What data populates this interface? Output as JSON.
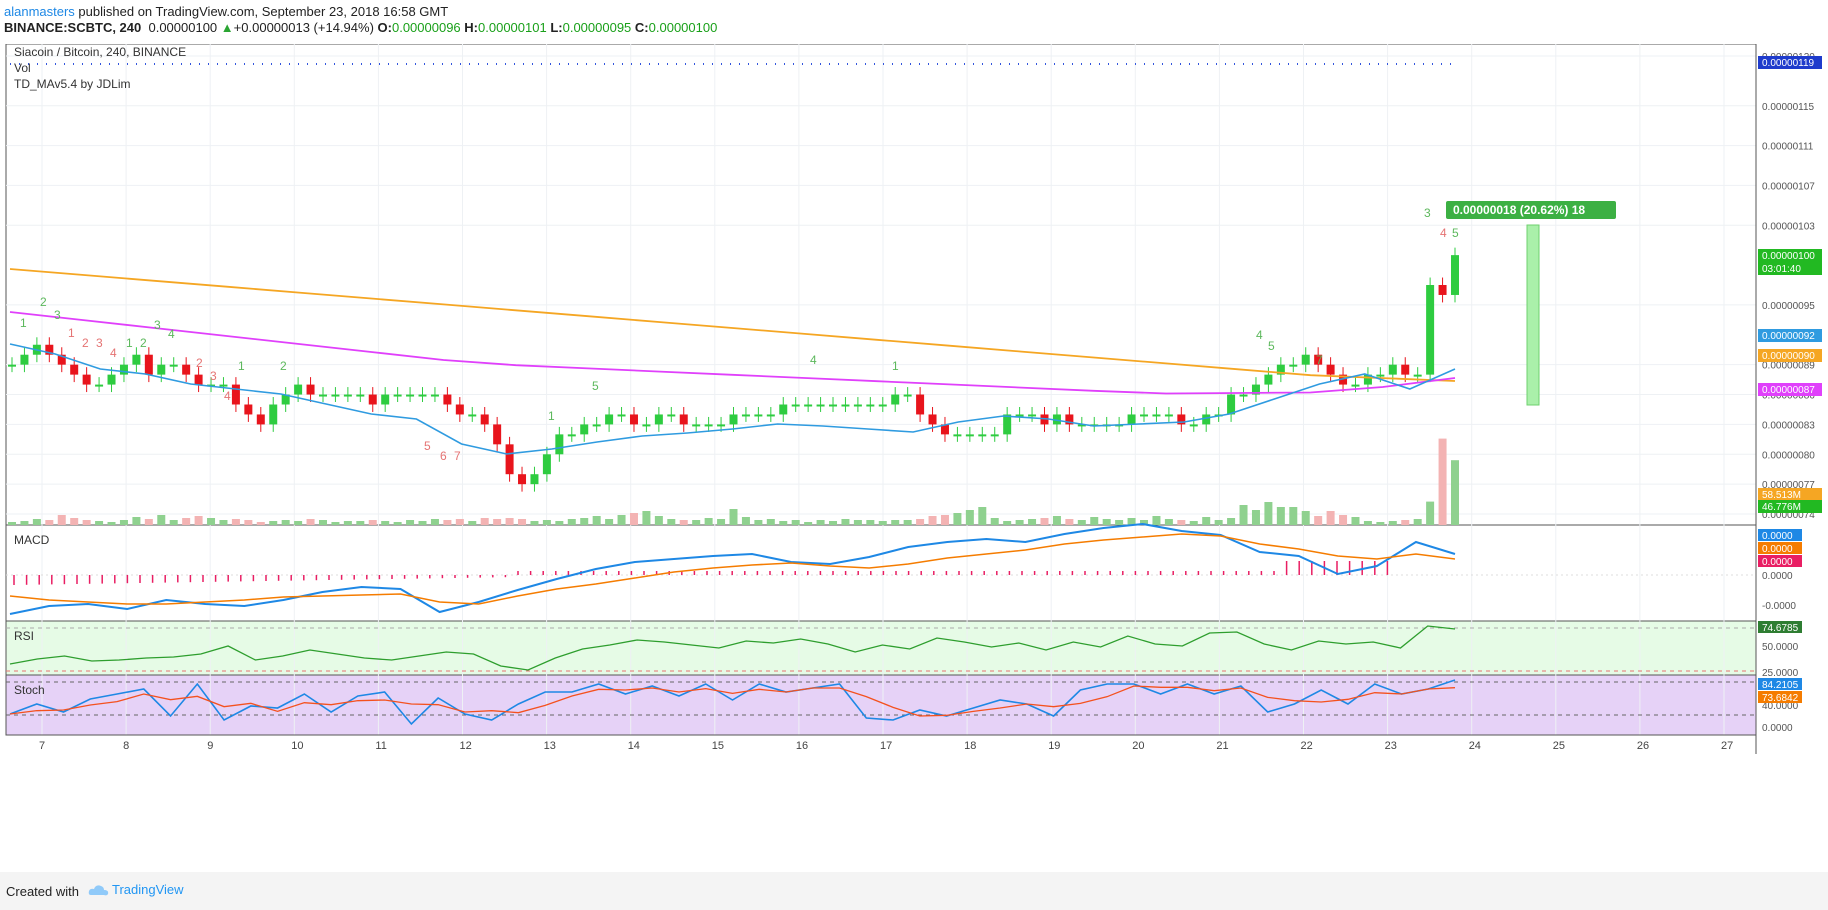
{
  "header": {
    "username": "alanmasters",
    "published_text": " published on TradingView.com, September 23, 2018 16:58 GMT",
    "symbol_line": "BINANCE:SCBTC, 240",
    "last": "0.00000100",
    "change": "+0.00000013 (+14.94%)",
    "o_label": "O:",
    "o": "0.00000096",
    "h_label": "H:",
    "h": "0.00000101",
    "l_label": "L:",
    "l": "0.00000095",
    "c_label": "C:",
    "c": "0.00000100"
  },
  "legend": {
    "title": "Siacoin / Bitcoin, 240, BINANCE",
    "vol": "Vol",
    "indicator": "TD_MAv5.4 by JDLim"
  },
  "measure_label": "0.00000018 (20.62%) 18",
  "price_axis": {
    "ticks": [
      "0.00000120",
      "0.00000115",
      "0.00000111",
      "0.00000107",
      "0.00000103",
      "0.00000095",
      "0.00000089",
      "0.00000086",
      "0.00000083",
      "0.00000080",
      "0.00000077",
      "0.00000074"
    ],
    "tags": [
      {
        "text": "0.00000119",
        "color": "#1e3bcc"
      },
      {
        "text": "0.00000100",
        "color": "#22b922"
      },
      {
        "text": "03:01:40",
        "color": "#22b922"
      },
      {
        "text": "0.00000092",
        "color": "#2f9be0"
      },
      {
        "text": "0.00000090",
        "color": "#f5a623"
      },
      {
        "text": "0.00000087",
        "color": "#e040fb"
      },
      {
        "text": "58.513M",
        "color": "#f5a623"
      },
      {
        "text": "46.776M",
        "color": "#22b922"
      }
    ]
  },
  "macd": {
    "title": "MACD",
    "ticks": [
      "0.0000",
      "-0.0000"
    ],
    "tags": [
      {
        "text": "0.0000",
        "color": "#1e88e5"
      },
      {
        "text": "0.0000",
        "color": "#f57c00"
      },
      {
        "text": "0.0000",
        "color": "#e91e63"
      }
    ]
  },
  "rsi": {
    "title": "RSI",
    "ticks": [
      "50.0000",
      "25.0000"
    ],
    "tag": {
      "text": "74.6785",
      "color": "#2e7d32"
    }
  },
  "stoch": {
    "title": "Stoch",
    "ticks": [
      "40.0000",
      "0.0000"
    ],
    "tags": [
      {
        "text": "84.2105",
        "color": "#1e88e5"
      },
      {
        "text": "73.6842",
        "color": "#f57c00"
      }
    ]
  },
  "x_axis": [
    "7",
    "8",
    "9",
    "10",
    "11",
    "12",
    "13",
    "14",
    "15",
    "16",
    "17",
    "18",
    "19",
    "20",
    "21",
    "22",
    "23",
    "24",
    "25",
    "26",
    "27"
  ],
  "footer": {
    "created": "Created with",
    "brand": "TradingView"
  },
  "colors": {
    "up": "#2ecc40",
    "down": "#e8141c",
    "ma_fast": "#2f9be0",
    "ma_slow": "#f5a623",
    "ma_mid": "#e040fb"
  },
  "chart_data": {
    "type": "candlestick",
    "title": "Siacoin / Bitcoin, 240, BINANCE",
    "ylim": [
      7.3e-07,
      1.21e-06
    ],
    "x_labels": [
      "7",
      "8",
      "9",
      "10",
      "11",
      "12",
      "13",
      "14",
      "15",
      "16",
      "17",
      "18",
      "19",
      "20",
      "21",
      "22",
      "23"
    ],
    "close": [
      8.9e-07,
      9e-07,
      9.1e-07,
      9e-07,
      8.9e-07,
      8.8e-07,
      8.7e-07,
      8.7e-07,
      8.8e-07,
      8.9e-07,
      9e-07,
      8.8e-07,
      8.9e-07,
      8.9e-07,
      8.8e-07,
      8.7e-07,
      8.7e-07,
      8.7e-07,
      8.5e-07,
      8.4e-07,
      8.3e-07,
      8.5e-07,
      8.6e-07,
      8.7e-07,
      8.6e-07,
      8.6e-07,
      8.6e-07,
      8.6e-07,
      8.6e-07,
      8.5e-07,
      8.6e-07,
      8.6e-07,
      8.6e-07,
      8.6e-07,
      8.6e-07,
      8.5e-07,
      8.4e-07,
      8.4e-07,
      8.3e-07,
      8.1e-07,
      7.8e-07,
      7.7e-07,
      7.8e-07,
      8e-07,
      8.2e-07,
      8.2e-07,
      8.3e-07,
      8.3e-07,
      8.4e-07,
      8.4e-07,
      8.3e-07,
      8.3e-07,
      8.4e-07,
      8.4e-07,
      8.3e-07,
      8.3e-07,
      8.3e-07,
      8.3e-07,
      8.4e-07,
      8.4e-07,
      8.4e-07,
      8.4e-07,
      8.5e-07,
      8.5e-07,
      8.5e-07,
      8.5e-07,
      8.5e-07,
      8.5e-07,
      8.5e-07,
      8.5e-07,
      8.5e-07,
      8.6e-07,
      8.6e-07,
      8.4e-07,
      8.3e-07,
      8.2e-07,
      8.2e-07,
      8.2e-07,
      8.2e-07,
      8.2e-07,
      8.4e-07,
      8.4e-07,
      8.4e-07,
      8.3e-07,
      8.4e-07,
      8.3e-07,
      8.3e-07,
      8.3e-07,
      8.3e-07,
      8.3e-07,
      8.4e-07,
      8.4e-07,
      8.4e-07,
      8.4e-07,
      8.3e-07,
      8.3e-07,
      8.4e-07,
      8.4e-07,
      8.6e-07,
      8.6e-07,
      8.7e-07,
      8.8e-07,
      8.9e-07,
      8.9e-07,
      9e-07,
      8.9e-07,
      8.8e-07,
      8.7e-07,
      8.7e-07,
      8.8e-07,
      8.8e-07,
      8.9e-07,
      8.8e-07,
      8.8e-07,
      9.7e-07,
      9.6e-07,
      1e-06
    ],
    "ma_fast_last": 9.2e-07,
    "ma_slow_last": 9e-07,
    "ma_mid_last": 8.7e-07,
    "volume_last": [
      "58.513M",
      "46.776M"
    ],
    "measure": "0.00000018 (20.62%) 18",
    "macd": {
      "macd_last": 0.0,
      "signal_last": 0.0,
      "hist_last": 0.0
    },
    "rsi_last": 74.6785,
    "stoch": {
      "k_last": 84.2105,
      "d_last": 73.6842
    }
  }
}
